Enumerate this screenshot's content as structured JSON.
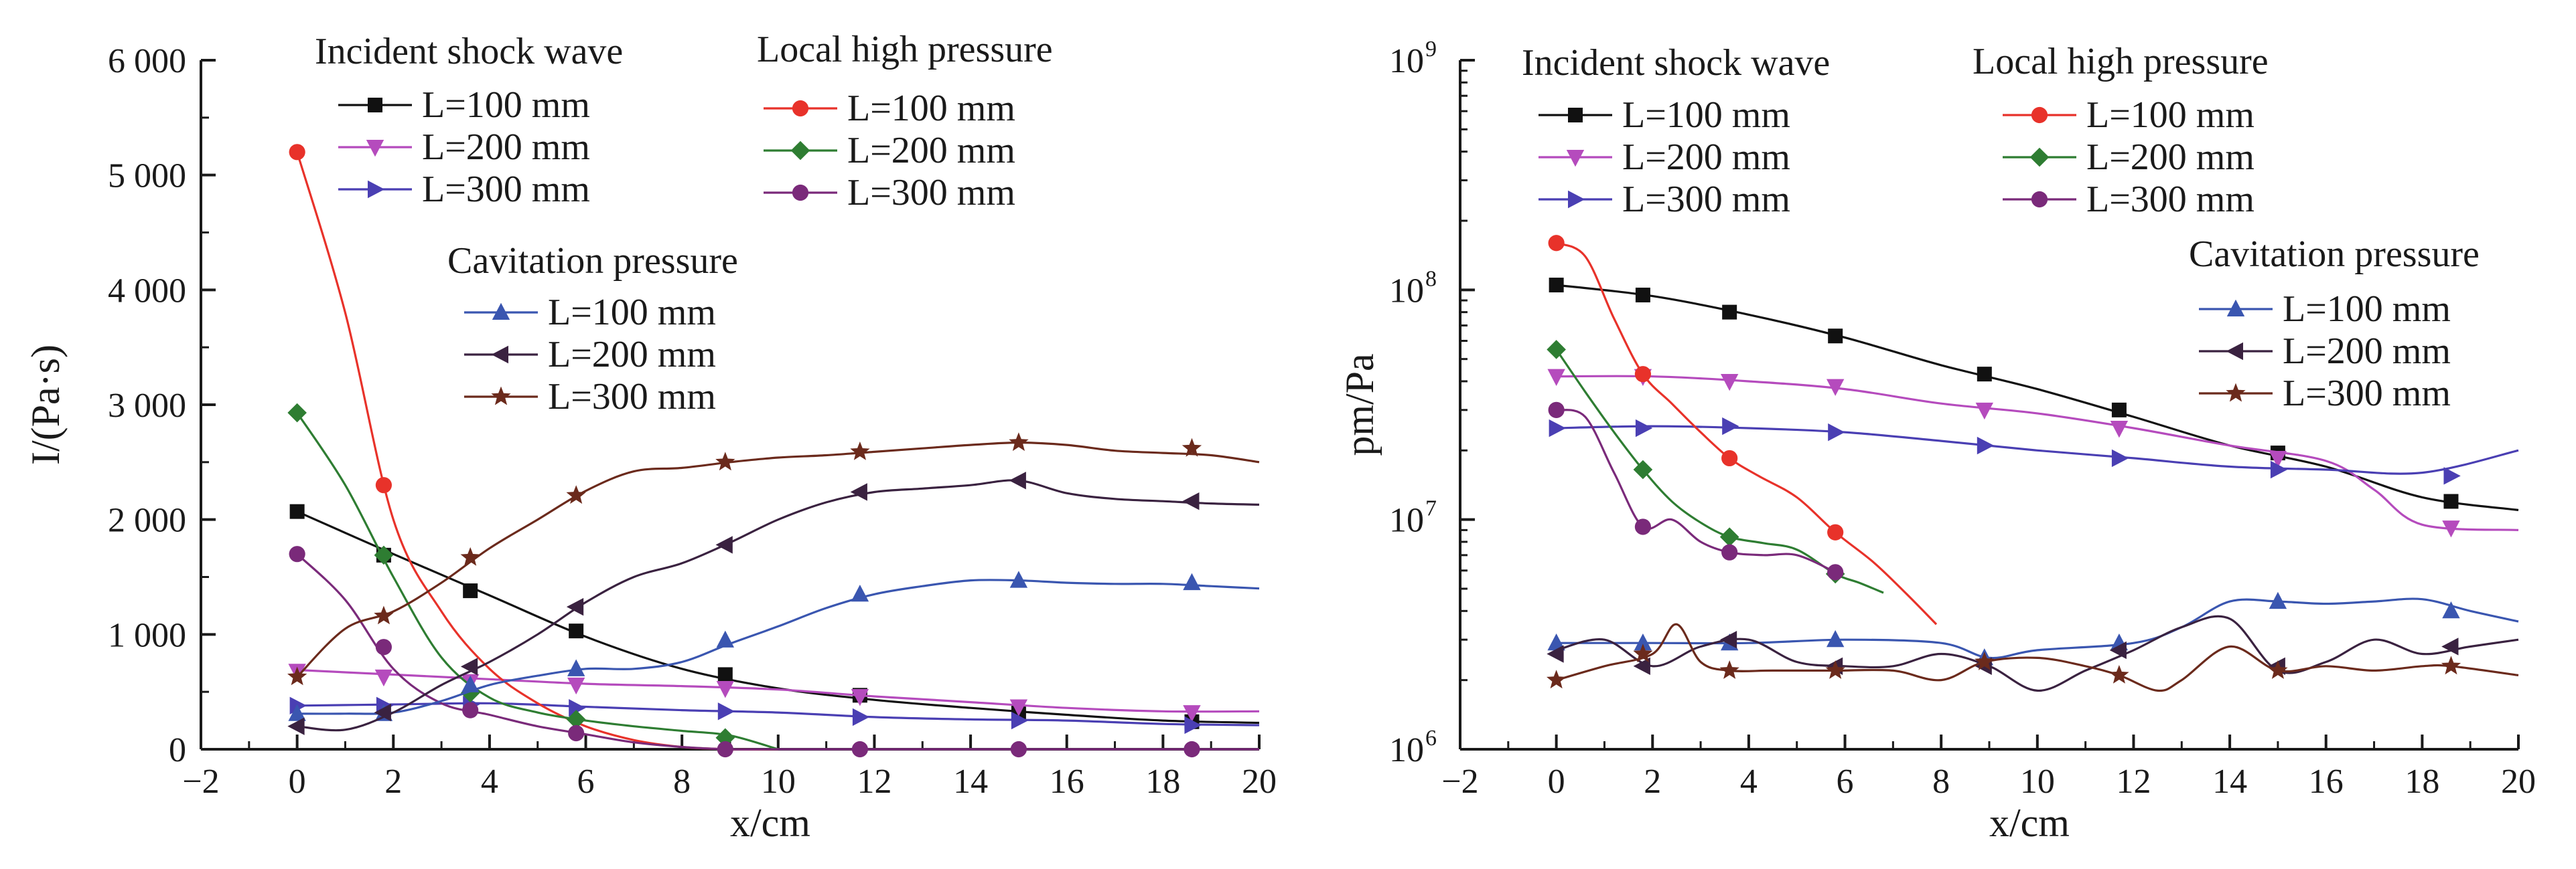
{
  "figure": {
    "legend_groups": {
      "incident": "Incident shock wave",
      "local": "Local high pressure",
      "cavitation": "Cavitation pressure"
    },
    "legend_items": {
      "l100": "L=100 mm",
      "l200": "L=200 mm",
      "l300": "L=300 mm"
    },
    "colors": {
      "is_100": "#111111",
      "is_200": "#b54bbd",
      "is_300": "#4a3fb3",
      "lh_100": "#e8322a",
      "lh_200": "#2e7d32",
      "lh_300": "#7a2a7a",
      "cp_100": "#3a56b0",
      "cp_200": "#3a2240",
      "cp_300": "#6b2a1c"
    },
    "markers": {
      "is_100": "square",
      "is_200": "triangle-down",
      "is_300": "triangle-right",
      "lh_100": "circle",
      "lh_200": "diamond",
      "lh_300": "circle",
      "cp_100": "triangle-up",
      "cp_200": "triangle-left",
      "cp_300": "star"
    }
  },
  "chart_data": [
    {
      "type": "line",
      "xlabel": "x/cm",
      "ylabel": "I/(Pa·s)",
      "xlim": [
        -2,
        20
      ],
      "ylim": [
        0,
        6000
      ],
      "x_ticks": [
        -2,
        0,
        2,
        4,
        6,
        8,
        10,
        12,
        14,
        16,
        18,
        20
      ],
      "y_ticks": [
        0,
        1000,
        2000,
        3000,
        4000,
        5000,
        6000
      ],
      "y_tick_labels": [
        "0",
        "1 000",
        "2 000",
        "3 000",
        "4 000",
        "5 000",
        "6 000"
      ],
      "grid": false,
      "series": [
        {
          "key": "is_100",
          "line_x": [
            0,
            2,
            4,
            6,
            8,
            10,
            12,
            14,
            16,
            18,
            20
          ],
          "line_y": [
            2070,
            1700,
            1340,
            980,
            700,
            530,
            430,
            360,
            300,
            250,
            230
          ],
          "marker_x": [
            0,
            1.8,
            3.6,
            5.8,
            8.9,
            11.7,
            15,
            18.6
          ],
          "marker_y": [
            2070,
            1690,
            1380,
            1030,
            650,
            470,
            320,
            240
          ]
        },
        {
          "key": "is_200",
          "line_x": [
            0,
            2,
            4,
            6,
            8,
            10,
            12,
            14,
            16,
            18,
            20
          ],
          "line_y": [
            690,
            650,
            610,
            570,
            550,
            520,
            460,
            410,
            360,
            330,
            330
          ],
          "marker_x": [
            0,
            1.8,
            3.6,
            5.8,
            8.9,
            11.7,
            15,
            18.6
          ],
          "marker_y": [
            680,
            630,
            590,
            560,
            530,
            460,
            370,
            320
          ]
        },
        {
          "key": "is_300",
          "line_x": [
            0,
            2,
            4,
            6,
            8,
            10,
            12,
            14,
            16,
            18,
            20
          ],
          "line_y": [
            380,
            390,
            400,
            370,
            340,
            320,
            280,
            260,
            250,
            220,
            210
          ],
          "marker_x": [
            0,
            1.8,
            3.6,
            5.8,
            8.9,
            11.7,
            15,
            18.6
          ],
          "marker_y": [
            380,
            380,
            390,
            360,
            330,
            280,
            250,
            210
          ]
        },
        {
          "key": "lh_100",
          "line_x": [
            0,
            1,
            2,
            3,
            4,
            5,
            6,
            7,
            8,
            9,
            10
          ],
          "line_y": [
            5200,
            3800,
            2000,
            1200,
            700,
            400,
            200,
            80,
            20,
            0,
            0
          ],
          "marker_x": [
            0,
            1.8
          ],
          "marker_y": [
            5200,
            2300
          ]
        },
        {
          "key": "lh_200",
          "line_x": [
            0,
            1,
            2,
            3,
            4,
            5,
            6,
            7,
            8,
            9,
            10
          ],
          "line_y": [
            2930,
            2300,
            1500,
            800,
            450,
            320,
            250,
            200,
            160,
            120,
            0
          ],
          "marker_x": [
            0,
            1.8,
            3.6,
            5.8,
            8.9
          ],
          "marker_y": [
            2930,
            1690,
            490,
            260,
            100
          ]
        },
        {
          "key": "lh_300",
          "line_x": [
            0,
            1,
            2,
            3,
            4,
            5,
            6,
            7,
            8,
            9,
            10,
            12,
            14,
            16,
            18,
            20
          ],
          "line_y": [
            1700,
            1300,
            700,
            400,
            300,
            200,
            130,
            60,
            20,
            0,
            0,
            0,
            0,
            0,
            0,
            0
          ],
          "marker_x": [
            0,
            1.8,
            3.6,
            5.8,
            8.9,
            11.7,
            15,
            18.6
          ],
          "marker_y": [
            1700,
            890,
            340,
            140,
            0,
            0,
            0,
            0
          ]
        },
        {
          "key": "cp_100",
          "line_x": [
            0,
            1,
            2,
            3,
            4,
            5,
            6,
            7,
            8,
            9,
            10,
            11,
            12,
            13,
            14,
            15,
            16,
            17,
            18,
            19,
            20
          ],
          "line_y": [
            310,
            310,
            320,
            420,
            560,
            640,
            700,
            700,
            760,
            920,
            1070,
            1230,
            1350,
            1420,
            1470,
            1470,
            1450,
            1440,
            1440,
            1420,
            1400
          ],
          "marker_x": [
            0,
            1.8,
            3.6,
            5.8,
            8.9,
            11.7,
            15,
            18.6
          ],
          "marker_y": [
            310,
            310,
            560,
            700,
            950,
            1350,
            1470,
            1450
          ]
        },
        {
          "key": "cp_200",
          "line_x": [
            0,
            1,
            2,
            3,
            4,
            5,
            6,
            7,
            8,
            9,
            10,
            11,
            12,
            13,
            14,
            15,
            16,
            17,
            18,
            19,
            20
          ],
          "line_y": [
            200,
            170,
            320,
            560,
            760,
            1000,
            1280,
            1500,
            1620,
            1800,
            2000,
            2150,
            2240,
            2270,
            2300,
            2340,
            2230,
            2180,
            2160,
            2140,
            2130
          ],
          "marker_x": [
            0,
            1.8,
            3.6,
            5.8,
            8.9,
            11.7,
            15,
            18.6
          ],
          "marker_y": [
            200,
            320,
            720,
            1240,
            1780,
            2240,
            2340,
            2160
          ]
        },
        {
          "key": "cp_300",
          "line_x": [
            0,
            1,
            2,
            3,
            4,
            5,
            6,
            7,
            8,
            9,
            10,
            11,
            12,
            13,
            14,
            15,
            16,
            17,
            18,
            19,
            20
          ],
          "line_y": [
            630,
            1050,
            1200,
            1450,
            1750,
            2000,
            2250,
            2420,
            2450,
            2500,
            2540,
            2560,
            2590,
            2620,
            2650,
            2670,
            2650,
            2600,
            2580,
            2560,
            2500
          ],
          "marker_x": [
            0,
            1.8,
            3.6,
            5.8,
            8.9,
            11.7,
            15,
            18.6
          ],
          "marker_y": [
            630,
            1160,
            1670,
            2210,
            2500,
            2590,
            2670,
            2620
          ]
        }
      ]
    },
    {
      "type": "line",
      "xlabel": "x/cm",
      "ylabel": "pm/Pa",
      "y_scale": "log",
      "xlim": [
        -2,
        20
      ],
      "ylim": [
        1000000,
        1000000000
      ],
      "x_ticks": [
        -2,
        0,
        2,
        4,
        6,
        8,
        10,
        12,
        14,
        16,
        18,
        20
      ],
      "y_ticks": [
        1000000,
        10000000,
        100000000,
        1000000000
      ],
      "y_tick_base": "10",
      "y_tick_exponents": [
        "6",
        "7",
        "8",
        "9"
      ],
      "grid": false,
      "series": [
        {
          "key": "is_100",
          "line_x": [
            0,
            2,
            4,
            6,
            8,
            10,
            12,
            14,
            16,
            18,
            20
          ],
          "line_y": [
            105000000,
            94000000,
            78000000,
            62000000,
            47000000,
            37000000,
            28000000,
            21000000,
            17000000,
            12500000,
            11000000
          ],
          "marker_x": [
            0,
            1.8,
            3.6,
            5.8,
            8.9,
            11.7,
            15,
            18.6
          ],
          "marker_y": [
            105000000,
            95000000,
            80000000,
            63000000,
            43000000,
            30000000,
            19500000,
            12000000
          ]
        },
        {
          "key": "is_200",
          "line_x": [
            0,
            2,
            4,
            6,
            8,
            10,
            12,
            14,
            16,
            17,
            18,
            20
          ],
          "line_y": [
            42000000,
            42000000,
            40000000,
            37000000,
            32000000,
            29000000,
            25000000,
            21000000,
            18000000,
            13500000,
            9500000,
            9000000
          ],
          "marker_x": [
            0,
            1.8,
            3.6,
            5.8,
            8.9,
            11.7,
            15,
            18.6
          ],
          "marker_y": [
            42000000,
            42000000,
            40000000,
            38000000,
            30000000,
            25000000,
            18500000,
            9200000
          ]
        },
        {
          "key": "is_300",
          "line_x": [
            0,
            2,
            4,
            6,
            8,
            10,
            12,
            14,
            16,
            18,
            20
          ],
          "line_y": [
            25000000,
            25500000,
            25000000,
            24000000,
            22000000,
            20000000,
            18500000,
            17000000,
            16500000,
            16000000,
            20000000
          ],
          "marker_x": [
            0,
            1.8,
            3.6,
            5.8,
            8.9,
            11.7,
            15,
            18.6
          ],
          "marker_y": [
            25000000,
            25000000,
            25500000,
            24000000,
            21000000,
            18500000,
            16500000,
            15500000
          ]
        },
        {
          "key": "lh_100",
          "line_x": [
            0,
            0.6,
            1.2,
            1.8,
            2.4,
            3,
            3.6,
            4.2,
            5,
            5.8,
            6.6,
            7.3,
            7.9
          ],
          "line_y": [
            160000000,
            140000000,
            75000000,
            43000000,
            32000000,
            24000000,
            18500000,
            15500000,
            12500000,
            8800000,
            6500000,
            4700000,
            3500000
          ],
          "marker_x": [
            0,
            1.8,
            3.6,
            5.8
          ],
          "marker_y": [
            160000000,
            43000000,
            18500000,
            8800000
          ]
        },
        {
          "key": "lh_200",
          "line_x": [
            0,
            0.6,
            1.2,
            1.8,
            2.4,
            3,
            3.6,
            4.3,
            5,
            5.8,
            6.3,
            6.8
          ],
          "line_y": [
            55000000,
            36000000,
            24000000,
            16500000,
            12000000,
            9700000,
            8400000,
            7900000,
            7400000,
            5800000,
            5300000,
            4800000
          ],
          "marker_x": [
            0,
            1.8,
            3.6,
            5.8
          ],
          "marker_y": [
            55000000,
            16500000,
            8400000,
            5800000
          ]
        },
        {
          "key": "lh_300",
          "line_x": [
            0,
            0.6,
            1.2,
            1.8,
            2.4,
            3,
            3.6,
            4.3,
            5,
            5.8
          ],
          "line_y": [
            30000000,
            28000000,
            16000000,
            9300000,
            10000000,
            8000000,
            7200000,
            7000000,
            7000000,
            5900000
          ],
          "marker_x": [
            0,
            1.8,
            3.6,
            5.8
          ],
          "marker_y": [
            30000000,
            9300000,
            7200000,
            5900000
          ]
        },
        {
          "key": "cp_100",
          "line_x": [
            0,
            2,
            4,
            6,
            8,
            9,
            10,
            12,
            13,
            14,
            15,
            16,
            17,
            18,
            19,
            20
          ],
          "line_y": [
            2900000,
            2900000,
            2900000,
            3000000,
            2900000,
            2500000,
            2700000,
            2900000,
            3400000,
            4400000,
            4400000,
            4300000,
            4400000,
            4500000,
            4000000,
            3600000
          ],
          "marker_x": [
            0,
            1.8,
            3.6,
            5.8,
            8.9,
            11.7,
            15,
            18.6
          ],
          "marker_y": [
            2900000,
            2900000,
            2900000,
            3000000,
            2500000,
            2900000,
            4400000,
            4000000
          ]
        },
        {
          "key": "cp_200",
          "line_x": [
            0,
            1,
            2,
            3,
            4,
            5,
            6,
            7,
            8,
            9,
            10,
            11,
            12,
            13,
            14,
            15,
            16,
            17,
            18,
            19,
            20
          ],
          "line_y": [
            2700000,
            3000000,
            2300000,
            2800000,
            3000000,
            2400000,
            2300000,
            2300000,
            2600000,
            2300000,
            1800000,
            2200000,
            2700000,
            3400000,
            3700000,
            2200000,
            2400000,
            3000000,
            2600000,
            2800000,
            3000000
          ],
          "marker_x": [
            0,
            1.8,
            3.6,
            5.8,
            8.9,
            11.7,
            15,
            18.6
          ],
          "marker_y": [
            2600000,
            2300000,
            3000000,
            2300000,
            2300000,
            2700000,
            2300000,
            2800000
          ]
        },
        {
          "key": "cp_300",
          "line_x": [
            0,
            1,
            2,
            2.5,
            3,
            3.6,
            4.5,
            5.8,
            7,
            8,
            8.9,
            10,
            11,
            11.7,
            12.5,
            13,
            14,
            15,
            16,
            17,
            18,
            18.6,
            20
          ],
          "line_y": [
            2000000,
            2300000,
            2600000,
            3500000,
            2400000,
            2200000,
            2200000,
            2200000,
            2200000,
            2000000,
            2400000,
            2500000,
            2300000,
            2100000,
            1800000,
            2000000,
            2800000,
            2200000,
            2300000,
            2200000,
            2300000,
            2300000,
            2100000
          ],
          "marker_x": [
            0,
            1.8,
            3.6,
            5.8,
            8.9,
            11.7,
            15,
            18.6
          ],
          "marker_y": [
            2000000,
            2600000,
            2200000,
            2200000,
            2400000,
            2100000,
            2200000,
            2300000
          ]
        }
      ]
    }
  ]
}
